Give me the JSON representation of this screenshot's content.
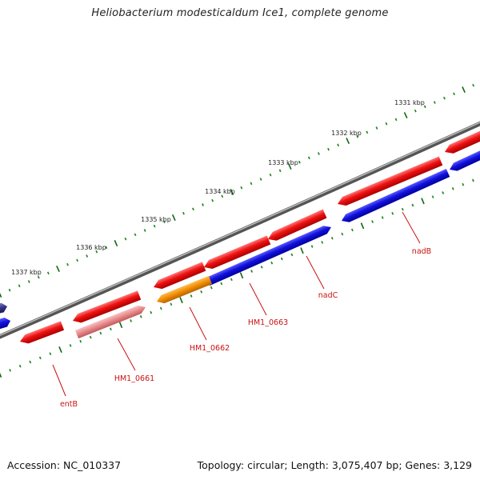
{
  "title": "Heliobacterium modesticaldum Ice1, complete genome",
  "footer": {
    "accession": "Accession: NC_010337",
    "summary": "Topology: circular; Length: 3,075,407 bp; Genes: 3,129"
  },
  "ruler_labels": [
    "1331 kbp",
    "1332 kbp",
    "1333 kbp",
    "1334 kbp",
    "1335 kbp",
    "1336 kbp",
    "1337 kbp"
  ],
  "gene_labels": [
    "nadB",
    "nadC",
    "HM1_0663",
    "HM1_0662",
    "HM1_0661",
    "entB"
  ],
  "colors": {
    "backbone": "#808080",
    "forward_gene": "#ee1111",
    "reverse_gene": "#1111dd",
    "orange_gene": "#f08c00",
    "pink_gene": "#e8888a",
    "dark_gene": "#333388",
    "tick_minor": "#228822",
    "tick_major": "#116611",
    "label": "#cc1111"
  }
}
